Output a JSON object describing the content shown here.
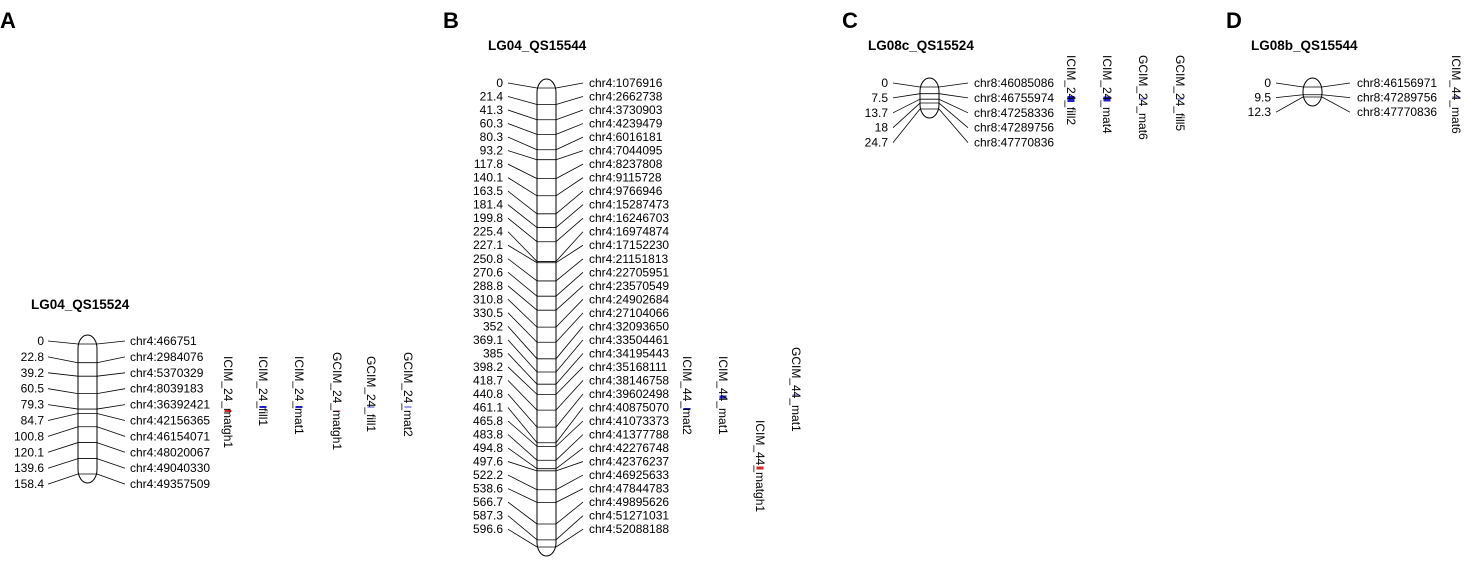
{
  "panels": [
    {
      "letter": "A",
      "title": "LG04_QS15524",
      "loci": [
        {
          "pos": "0",
          "marker": "chr4:466751"
        },
        {
          "pos": "22.8",
          "marker": "chr4:2984076"
        },
        {
          "pos": "39.2",
          "marker": "chr4:5370329"
        },
        {
          "pos": "60.5",
          "marker": "chr4:8039183"
        },
        {
          "pos": "79.3",
          "marker": "chr4:36392421"
        },
        {
          "pos": "84.7",
          "marker": "chr4:42156365"
        },
        {
          "pos": "100.8",
          "marker": "chr4:46154071"
        },
        {
          "pos": "120.1",
          "marker": "chr4:48020067"
        },
        {
          "pos": "139.6",
          "marker": "chr4:49040330"
        },
        {
          "pos": "158.4",
          "marker": "chr4:49357509"
        }
      ],
      "qtls": [
        {
          "label": "ICIM_24_matgh1",
          "color": "#d62728"
        },
        {
          "label": "ICIM_24_fill1",
          "color": "#1f1fcc"
        },
        {
          "label": "ICIM_24_mat1",
          "color": "#1f1fcc"
        },
        {
          "label": "GCIM_24_matgh1",
          "color": "#e8a0a0"
        },
        {
          "label": "GCIM_24_fill1",
          "color": "#8080e0"
        },
        {
          "label": "GCIM_24_mat2",
          "color": "#8080e0"
        }
      ]
    },
    {
      "letter": "B",
      "title": "LG04_QS15544",
      "loci": [
        {
          "pos": "0",
          "marker": "chr4:1076916"
        },
        {
          "pos": "21.4",
          "marker": "chr4:2662738"
        },
        {
          "pos": "41.3",
          "marker": "chr4:3730903"
        },
        {
          "pos": "60.3",
          "marker": "chr4:4239479"
        },
        {
          "pos": "80.3",
          "marker": "chr4:6016181"
        },
        {
          "pos": "93.2",
          "marker": "chr4:7044095"
        },
        {
          "pos": "117.8",
          "marker": "chr4:8237808"
        },
        {
          "pos": "140.1",
          "marker": "chr4:9115728"
        },
        {
          "pos": "163.5",
          "marker": "chr4:9766946"
        },
        {
          "pos": "181.4",
          "marker": "chr4:15287473"
        },
        {
          "pos": "199.8",
          "marker": "chr4:16246703"
        },
        {
          "pos": "225.4",
          "marker": "chr4:16974874"
        },
        {
          "pos": "227.1",
          "marker": "chr4:17152230"
        },
        {
          "pos": "250.8",
          "marker": "chr4:21151813"
        },
        {
          "pos": "270.6",
          "marker": "chr4:22705951"
        },
        {
          "pos": "288.8",
          "marker": "chr4:23570549"
        },
        {
          "pos": "310.8",
          "marker": "chr4:24902684"
        },
        {
          "pos": "330.5",
          "marker": "chr4:27104066"
        },
        {
          "pos": "352",
          "marker": "chr4:32093650"
        },
        {
          "pos": "369.1",
          "marker": "chr4:33504461"
        },
        {
          "pos": "385",
          "marker": "chr4:34195443"
        },
        {
          "pos": "398.2",
          "marker": "chr4:35168111"
        },
        {
          "pos": "418.7",
          "marker": "chr4:38146758"
        },
        {
          "pos": "440.8",
          "marker": "chr4:39602498"
        },
        {
          "pos": "461.1",
          "marker": "chr4:40875070"
        },
        {
          "pos": "465.8",
          "marker": "chr4:41073373"
        },
        {
          "pos": "483.8",
          "marker": "chr4:41377788"
        },
        {
          "pos": "494.8",
          "marker": "chr4:42276748"
        },
        {
          "pos": "497.6",
          "marker": "chr4:42376237"
        },
        {
          "pos": "522.2",
          "marker": "chr4:46925633"
        },
        {
          "pos": "538.6",
          "marker": "chr4:47844783"
        },
        {
          "pos": "566.7",
          "marker": "chr4:49895626"
        },
        {
          "pos": "587.3",
          "marker": "chr4:51271031"
        },
        {
          "pos": "596.6",
          "marker": "chr4:52088188"
        }
      ],
      "qtls": [
        {
          "label": "ICIM_44_mat2",
          "color": "#1f1fcc"
        },
        {
          "label": "ICIM_44_mat1",
          "color": "#1f1fcc"
        },
        {
          "label": "ICIM_44_matgh1",
          "color": "#d62728"
        },
        {
          "label": "GCIM_44_mat1",
          "color": "#8080e0"
        }
      ]
    },
    {
      "letter": "C",
      "title": "LG08c_QS15524",
      "loci": [
        {
          "pos": "0",
          "marker": "chr8:46085086"
        },
        {
          "pos": "7.5",
          "marker": "chr8:46755974"
        },
        {
          "pos": "13.7",
          "marker": "chr8:47258336"
        },
        {
          "pos": "18",
          "marker": "chr8:47289756"
        },
        {
          "pos": "24.7",
          "marker": "chr8:47770836"
        }
      ],
      "qtls": [
        {
          "label": "ICIM_24_fill2",
          "color": "#1f1fcc"
        },
        {
          "label": "ICIM_24_mat4",
          "color": "#1f1fcc"
        },
        {
          "label": "GCIM_24_mat6",
          "color": "#8080e0"
        },
        {
          "label": "GCIM_24_fill5",
          "color": "#8080e0"
        }
      ]
    },
    {
      "letter": "D",
      "title": "LG08b_QS15544",
      "loci": [
        {
          "pos": "0",
          "marker": "chr8:46156971"
        },
        {
          "pos": "9.5",
          "marker": "chr8:47289756"
        },
        {
          "pos": "12.3",
          "marker": "chr8:47770836"
        }
      ],
      "qtls": [
        {
          "label": "ICIM_44_mat6",
          "color": "#8080e0"
        }
      ]
    }
  ]
}
